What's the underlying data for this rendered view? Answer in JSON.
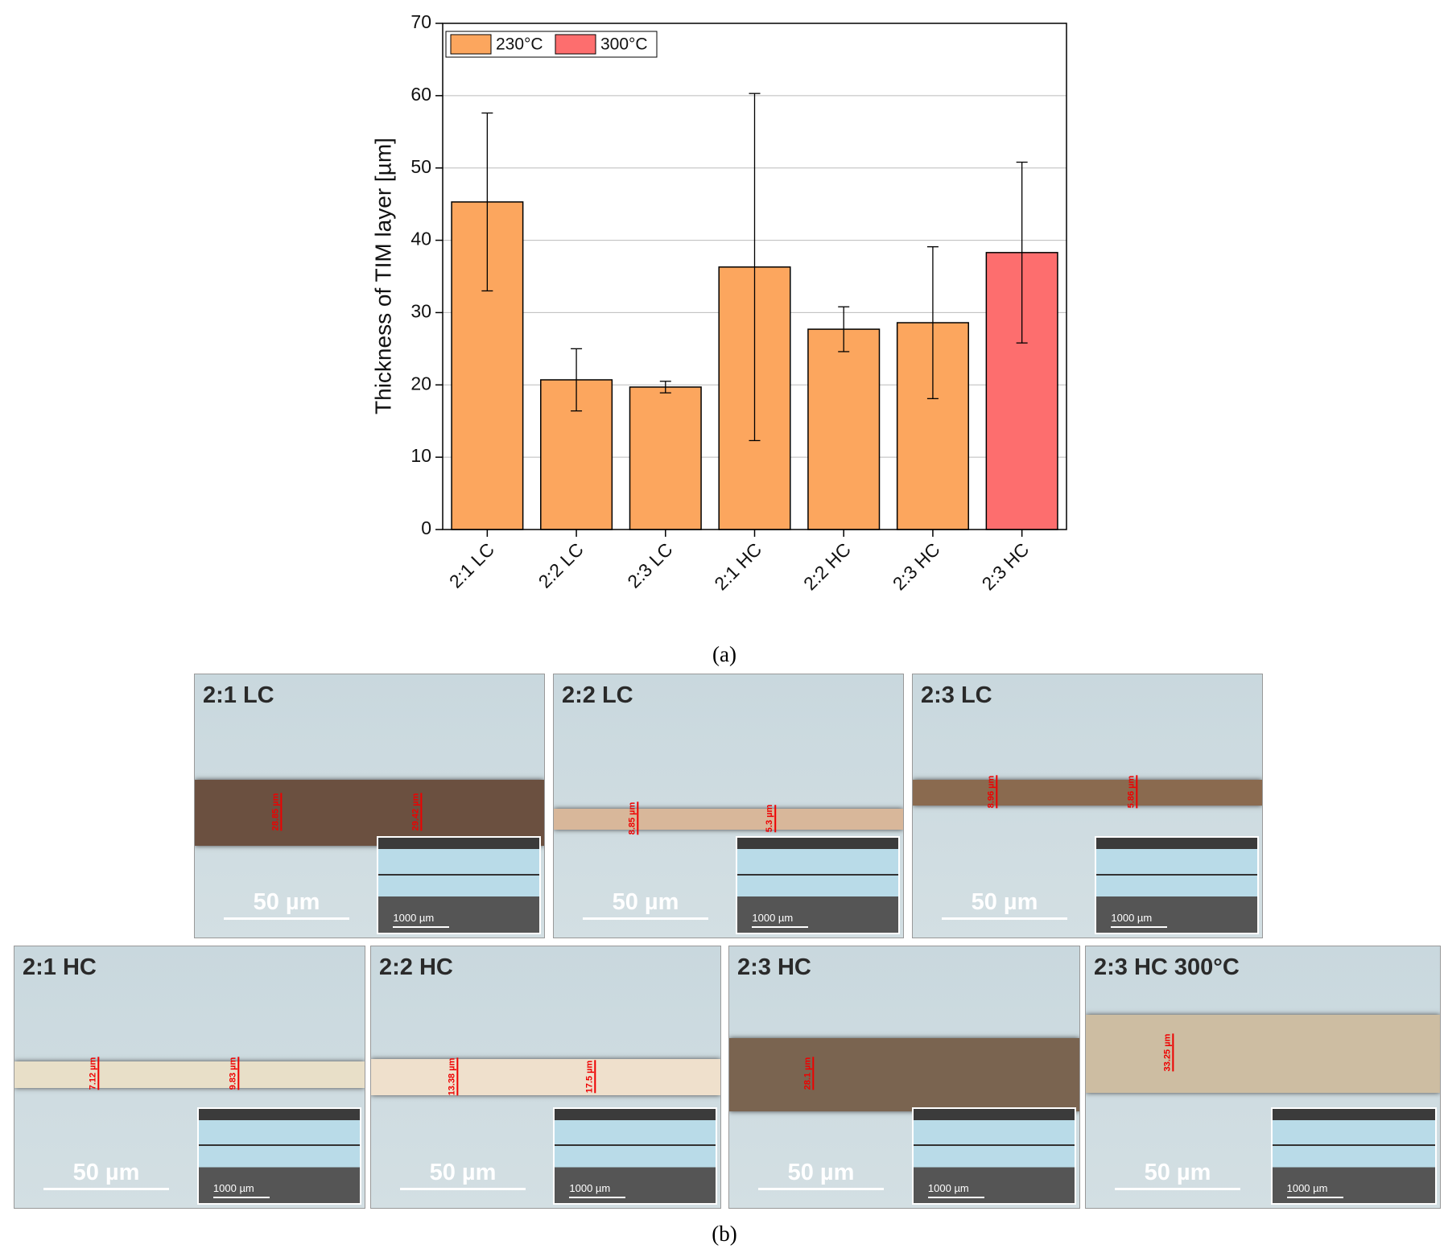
{
  "chart_data": {
    "type": "bar",
    "ylabel": "Thickness of TIM layer [µm]",
    "categories": [
      "2:1 LC",
      "2:2 LC",
      "2:3 LC",
      "2:1 HC",
      "2:2 HC",
      "2:3 HC",
      "2:3 HC"
    ],
    "series": [
      {
        "name": "230°C",
        "color": "#fca65e",
        "values": [
          45.3,
          20.7,
          19.7,
          36.3,
          27.7,
          28.6,
          null
        ],
        "errors": [
          12.3,
          4.3,
          0.8,
          24,
          3.1,
          10.5,
          null
        ]
      },
      {
        "name": "300°C",
        "color": "#fd6e6e",
        "values": [
          null,
          null,
          null,
          null,
          null,
          null,
          38.3
        ],
        "errors": [
          null,
          null,
          null,
          null,
          null,
          null,
          12.5
        ]
      }
    ],
    "ylim": [
      0,
      70
    ],
    "yticks": [
      0,
      10,
      20,
      30,
      40,
      50,
      60,
      70
    ],
    "grid": true,
    "legend": "top-left"
  },
  "captions": {
    "a": "(a)",
    "b": "(b)"
  },
  "panels": [
    {
      "label": "2:1 LC",
      "scale": "50 µm",
      "inset_scale": "1000 µm",
      "measurements": [
        "28.85 µm",
        "29.42 µm"
      ]
    },
    {
      "label": "2:2 LC",
      "scale": "50 µm",
      "inset_scale": "1000 µm",
      "measurements": [
        "8.85 µm",
        "5.3 µm"
      ]
    },
    {
      "label": "2:3 LC",
      "scale": "50 µm",
      "inset_scale": "1000 µm",
      "measurements": [
        "8.96 µm",
        "5.86 µm"
      ]
    },
    {
      "label": "2:1 HC",
      "scale": "50 µm",
      "inset_scale": "1000 µm",
      "measurements": [
        "7.12 µm",
        "9.83 µm"
      ]
    },
    {
      "label": "2:2 HC",
      "scale": "50 µm",
      "inset_scale": "1000 µm",
      "measurements": [
        "13.38 µm",
        "17.5 µm"
      ]
    },
    {
      "label": "2:3 HC",
      "scale": "50 µm",
      "inset_scale": "1000 µm",
      "measurements": [
        "28.1 µm"
      ]
    },
    {
      "label": "2:3 HC 300°C",
      "scale": "50 µm",
      "inset_scale": "1000 µm",
      "measurements": [
        "33.25 µm"
      ]
    }
  ]
}
